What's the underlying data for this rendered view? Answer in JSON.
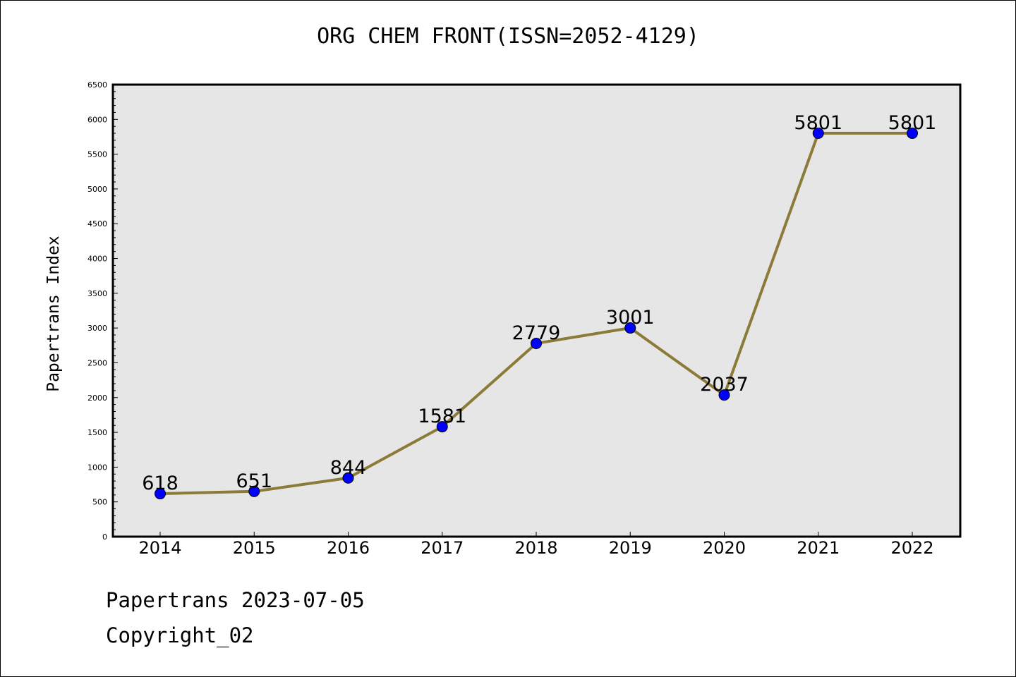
{
  "chart_data": {
    "type": "line",
    "title": "ORG CHEM FRONT(ISSN=2052-4129)",
    "xlabel": "",
    "ylabel": "Papertrans Index",
    "categories": [
      "2014",
      "2015",
      "2016",
      "2017",
      "2018",
      "2019",
      "2020",
      "2021",
      "2022"
    ],
    "series": [
      {
        "values": [
          618,
          651,
          844,
          1581,
          2779,
          3001,
          2037,
          5801,
          5801
        ]
      }
    ],
    "data_labels": [
      "618",
      "651",
      "844",
      "1581",
      "2779",
      "3001",
      "2037",
      "5801",
      "5801"
    ],
    "ylim": [
      0,
      6500
    ],
    "yticks": [
      "0",
      "500",
      "1000",
      "1500",
      "2000",
      "2500",
      "3000",
      "3500",
      "4000",
      "4500",
      "5000",
      "5500",
      "6000",
      "6500"
    ],
    "grid": false,
    "legend": "none"
  },
  "colors": {
    "line": "#8c7a38",
    "marker": "#0000ff",
    "plot_background": "#e6e6e6"
  },
  "footer": {
    "line1": "Papertrans 2023-07-05",
    "line2": "Copyright_02"
  }
}
